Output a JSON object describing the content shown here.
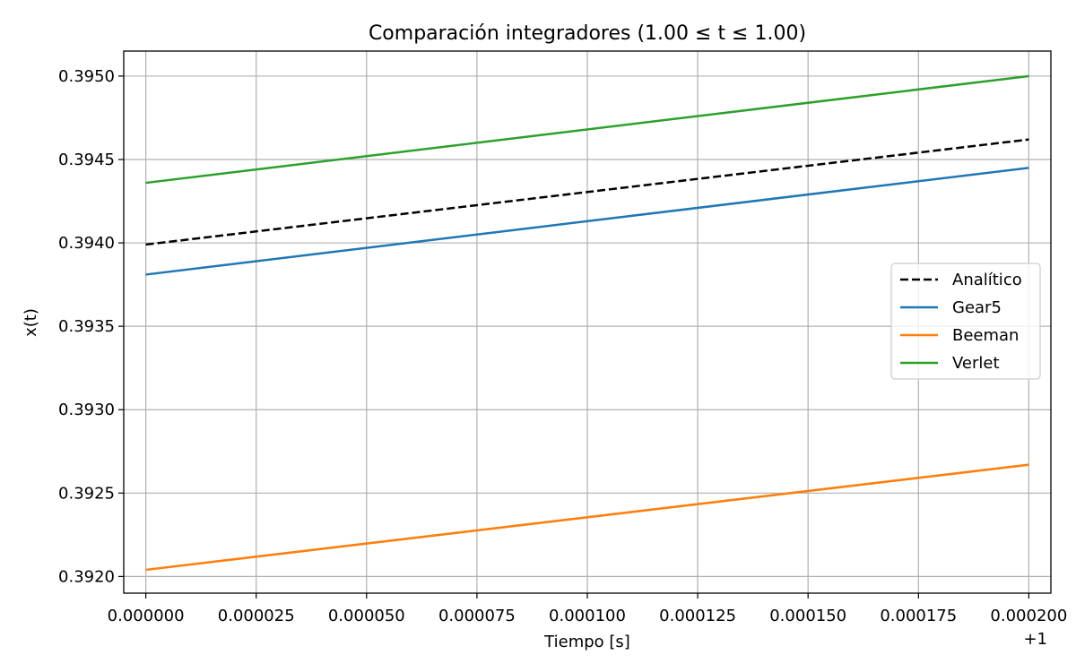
{
  "chart_data": {
    "type": "line",
    "title": "Comparación integradores (1.00 ≤ t ≤ 1.00)",
    "xlabel": "Tiempo [s]",
    "ylabel": "x(t)",
    "x_offset_label": "+1",
    "xlim": [
      -5e-06,
      0.000205
    ],
    "ylim": [
      0.3919,
      0.39515
    ],
    "x_ticks": [
      0,
      2.5e-05,
      5e-05,
      7.5e-05,
      0.0001,
      0.000125,
      0.00015,
      0.000175,
      0.0002
    ],
    "x_tick_labels": [
      "0.000000",
      "0.000025",
      "0.000050",
      "0.000075",
      "0.000100",
      "0.000125",
      "0.000150",
      "0.000175",
      "0.000200"
    ],
    "y_ticks": [
      0.392,
      0.3925,
      0.393,
      0.3935,
      0.394,
      0.3945,
      0.395
    ],
    "y_tick_labels": [
      "0.3920",
      "0.3925",
      "0.3930",
      "0.3935",
      "0.3940",
      "0.3945",
      "0.3950"
    ],
    "grid": true,
    "legend_position": "center-right",
    "series": [
      {
        "name": "Analítico",
        "color": "#000000",
        "dash": "dashed",
        "x": [
          0,
          0.0002
        ],
        "y": [
          0.39399,
          0.39462
        ]
      },
      {
        "name": "Gear5",
        "color": "#1f77b4",
        "dash": "solid",
        "x": [
          0,
          0.0002
        ],
        "y": [
          0.39381,
          0.39445
        ]
      },
      {
        "name": "Beeman",
        "color": "#ff7f0e",
        "dash": "solid",
        "x": [
          0,
          0.0002
        ],
        "y": [
          0.39204,
          0.39267
        ]
      },
      {
        "name": "Verlet",
        "color": "#2ca02c",
        "dash": "solid",
        "x": [
          0,
          0.0002
        ],
        "y": [
          0.39436,
          0.395
        ]
      }
    ]
  }
}
